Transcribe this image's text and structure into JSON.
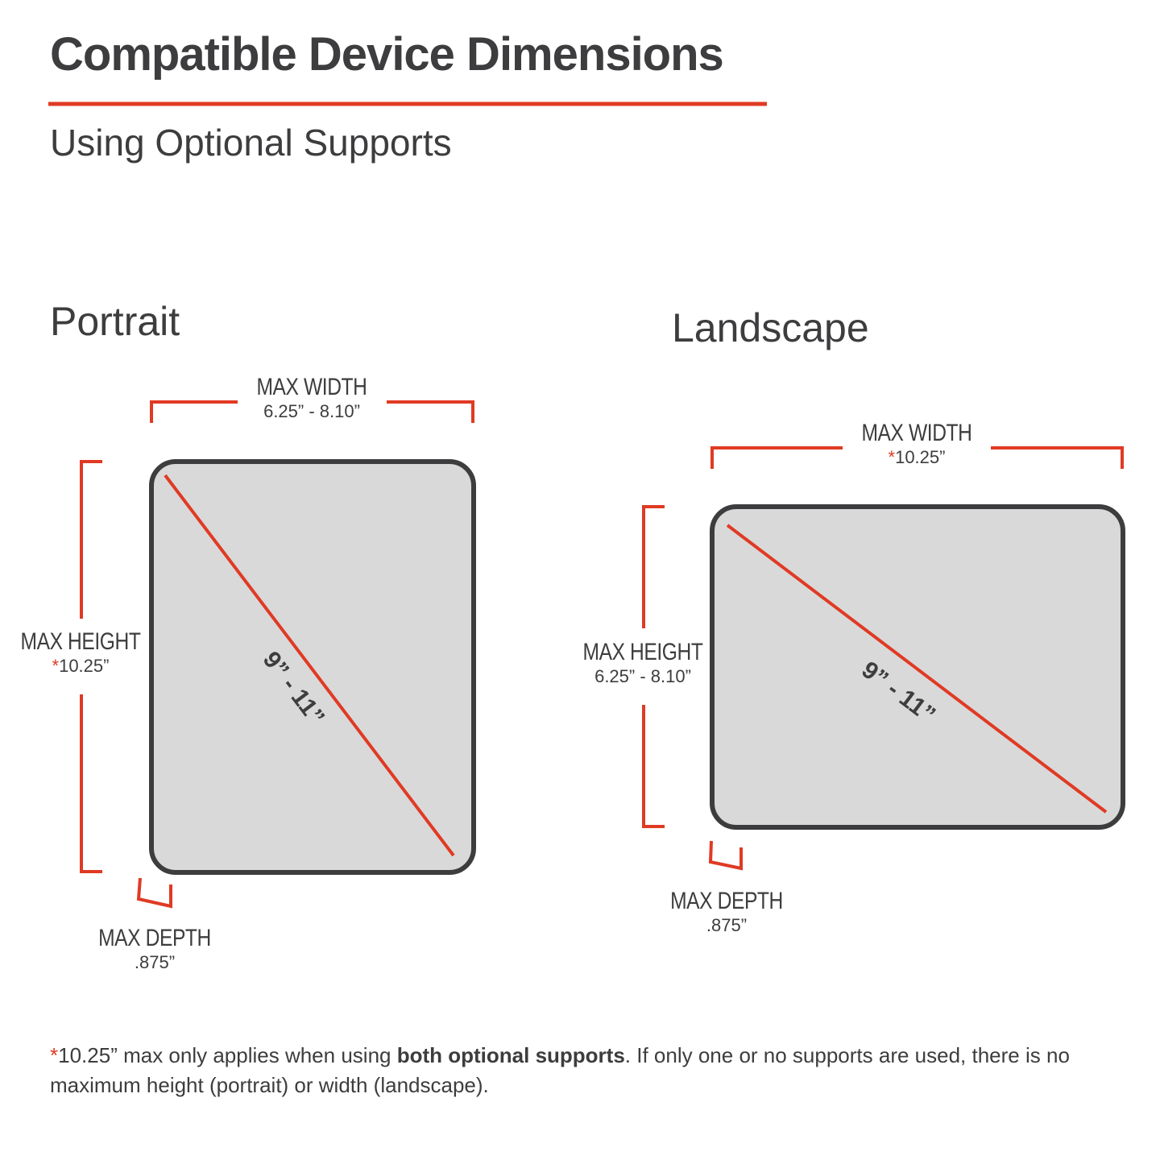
{
  "header": {
    "title": "Compatible Device Dimensions",
    "subtitle": "Using Optional Supports"
  },
  "colors": {
    "accent": "#e03a24",
    "text": "#3d3d3f",
    "device_fill": "#d9d9d9"
  },
  "portrait": {
    "heading": "Portrait",
    "width_label": "MAX WIDTH",
    "width_value": "6.25” - 8.10”",
    "height_label": "MAX HEIGHT",
    "height_star": "*",
    "height_value": "10.25”",
    "depth_label": "MAX DEPTH",
    "depth_value": ".875”",
    "diagonal": "9” - 11”"
  },
  "landscape": {
    "heading": "Landscape",
    "width_label": "MAX WIDTH",
    "width_star": "*",
    "width_value": "10.25”",
    "height_label": "MAX HEIGHT",
    "height_value": "6.25” - 8.10”",
    "depth_label": "MAX DEPTH",
    "depth_value": ".875”",
    "diagonal": "9” - 11”"
  },
  "footnote": {
    "star": "*",
    "part1": "10.25” max only applies when using ",
    "bold": "both optional supports",
    "part2": ". If only one or no supports are used, there is no maximum height (portrait) or width (landscape)."
  }
}
